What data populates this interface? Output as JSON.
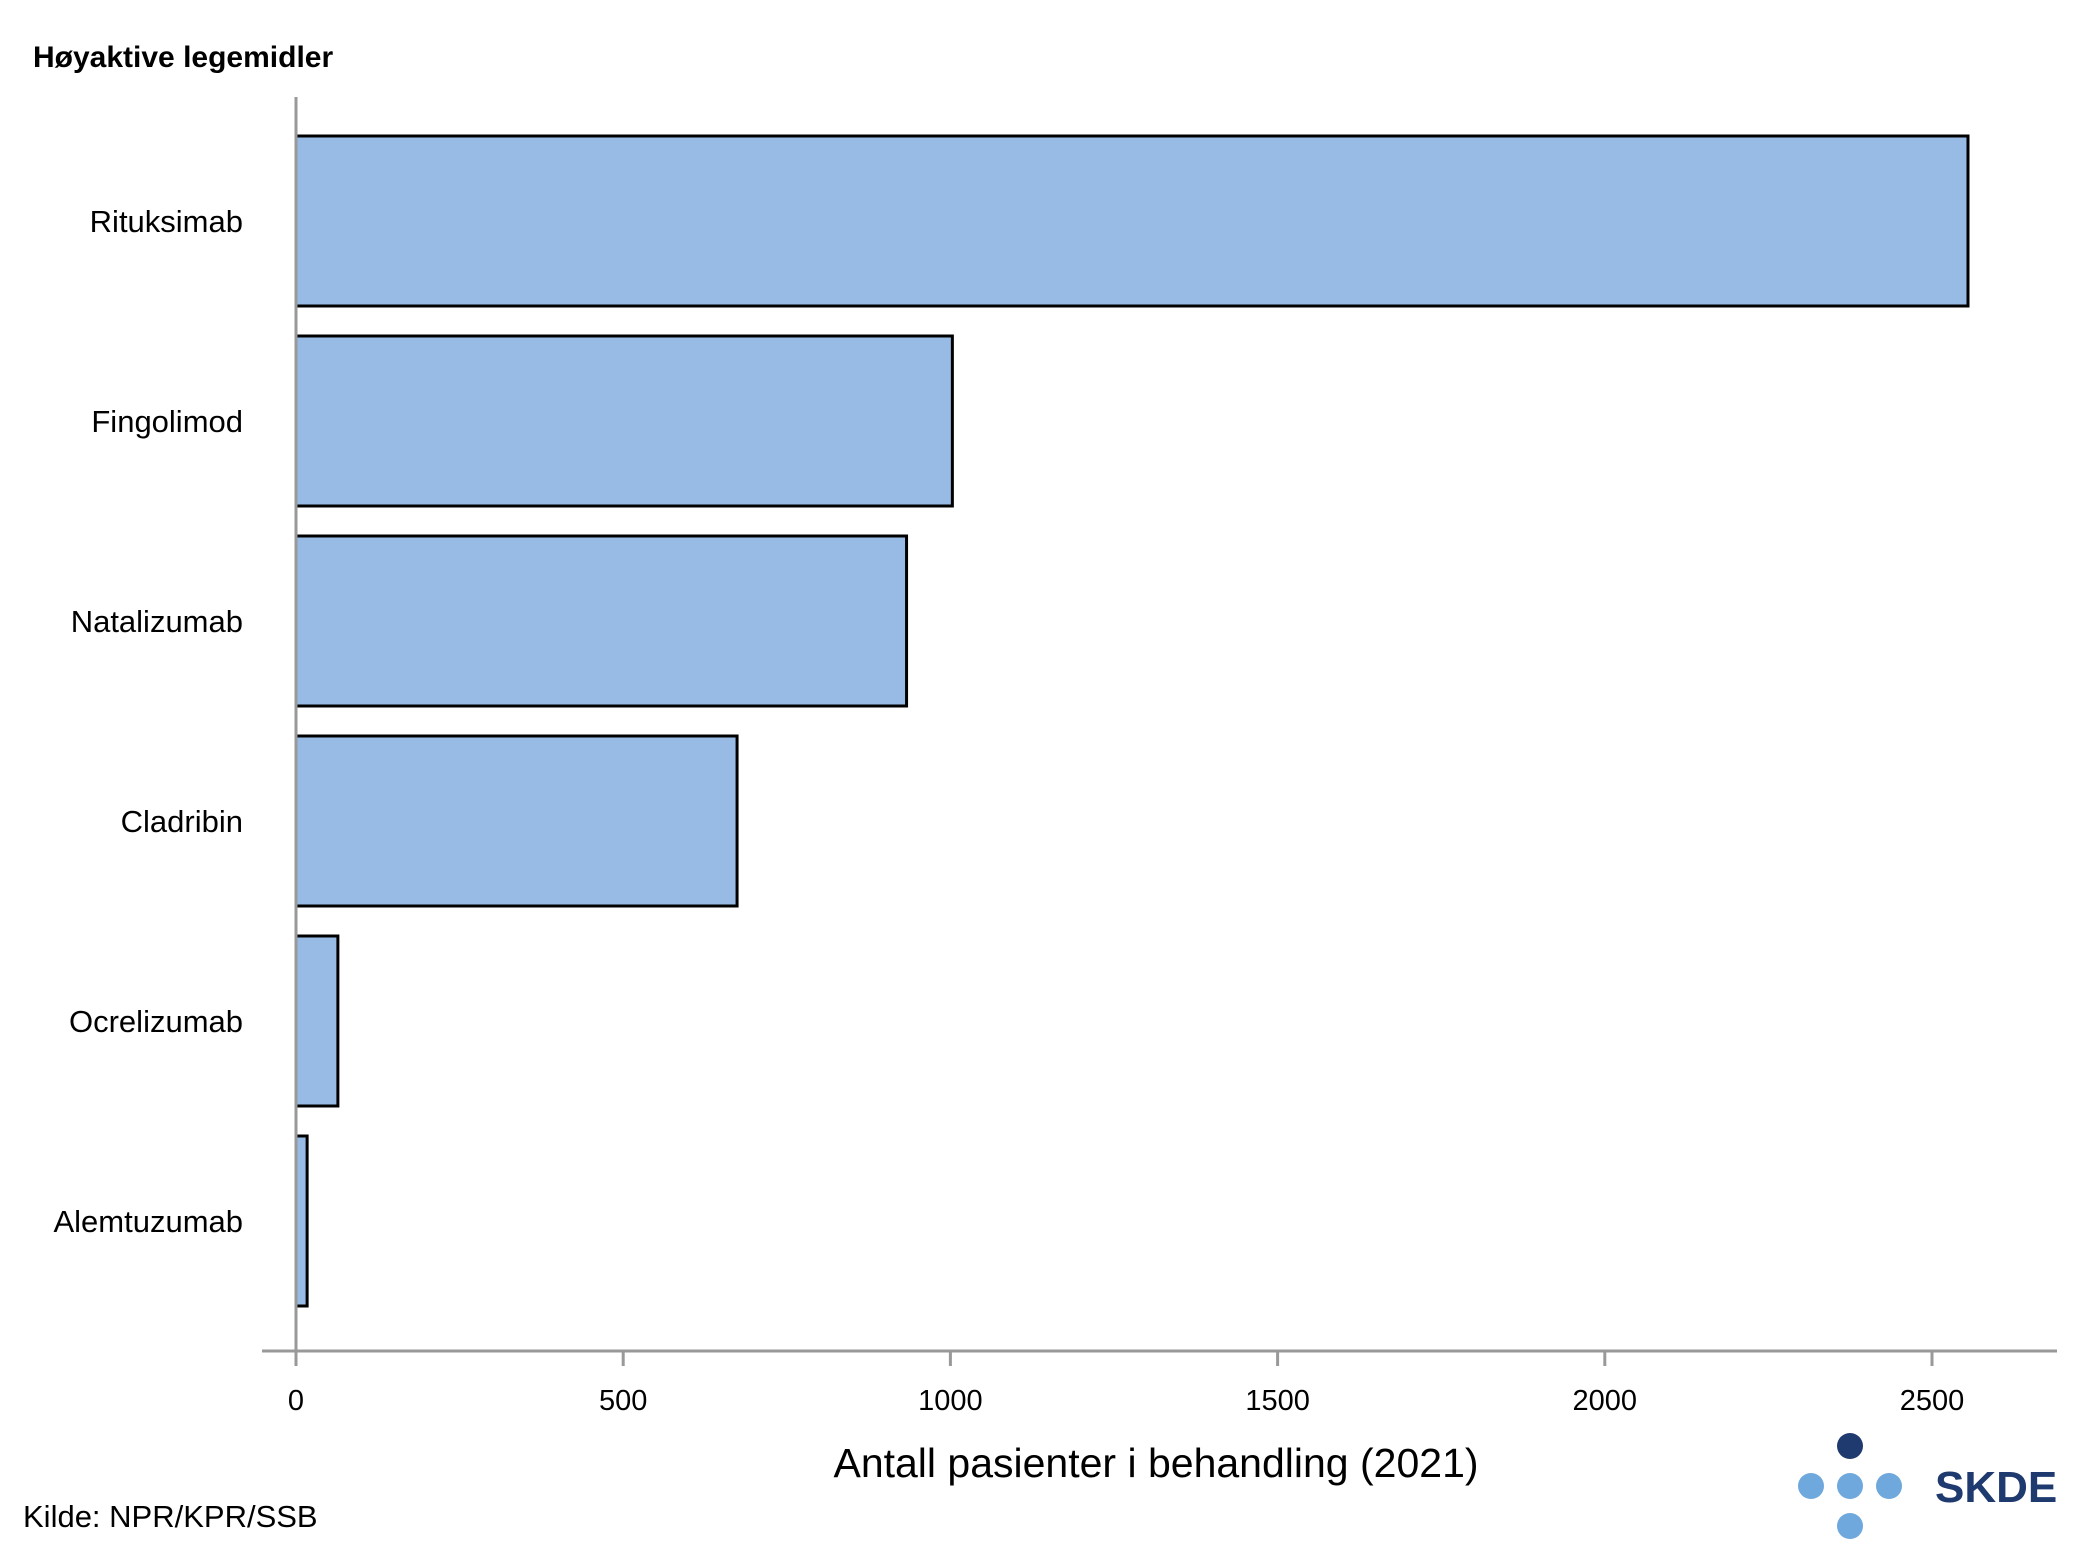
{
  "chart_data": {
    "type": "bar",
    "orientation": "horizontal",
    "title": "Høyaktive legemidler",
    "xlabel": "Antall pasienter i behandling (2021)",
    "ylabel": "",
    "categories": [
      "Rituksimab",
      "Fingolimod",
      "Natalizumab",
      "Cladribin",
      "Ocrelizumab",
      "Alemtuzumab"
    ],
    "values": [
      2555,
      1003,
      933,
      674,
      64,
      17
    ],
    "xlim": [
      0,
      2700
    ],
    "xticks": [
      "0",
      "500",
      "1000",
      "1500",
      "2000",
      "2500"
    ],
    "grid": false,
    "legend": "none",
    "colors": {
      "bar_fill": "#97bbe4",
      "bar_stroke": "#000000",
      "axis": "#999999"
    }
  },
  "footer": {
    "source": "Kilde: NPR/KPR/SSB"
  },
  "logo": {
    "text": "SKDE",
    "colors": {
      "dark": "#1f3a6e",
      "light": "#6fa8dc"
    }
  }
}
